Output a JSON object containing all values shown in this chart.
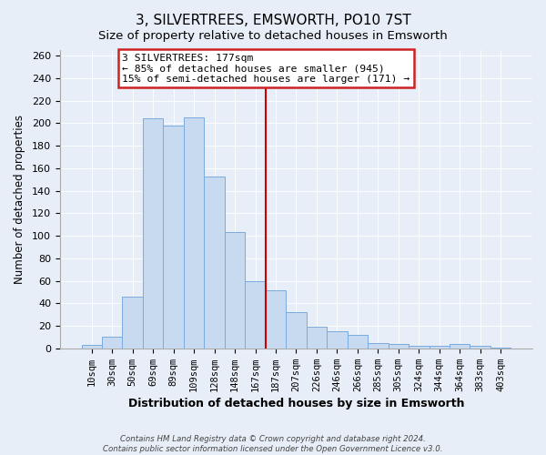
{
  "title": "3, SILVERTREES, EMSWORTH, PO10 7ST",
  "subtitle": "Size of property relative to detached houses in Emsworth",
  "xlabel": "Distribution of detached houses by size in Emsworth",
  "ylabel": "Number of detached properties",
  "bar_labels": [
    "10sqm",
    "30sqm",
    "50sqm",
    "69sqm",
    "89sqm",
    "109sqm",
    "128sqm",
    "148sqm",
    "167sqm",
    "187sqm",
    "207sqm",
    "226sqm",
    "246sqm",
    "266sqm",
    "285sqm",
    "305sqm",
    "324sqm",
    "344sqm",
    "364sqm",
    "383sqm",
    "403sqm"
  ],
  "bar_values": [
    3,
    10,
    46,
    204,
    198,
    205,
    153,
    103,
    60,
    52,
    32,
    19,
    15,
    12,
    5,
    4,
    2,
    2,
    4,
    2,
    1
  ],
  "bar_color": "#c8daf0",
  "bar_edge_color": "#7aaadd",
  "vline_x": 8.5,
  "vline_color": "#cc0000",
  "annotation_line1": "3 SILVERTREES: 177sqm",
  "annotation_line2": "← 85% of detached houses are smaller (945)",
  "annotation_line3": "15% of semi-detached houses are larger (171) →",
  "annotation_box_facecolor": "white",
  "annotation_box_edgecolor": "#cc2222",
  "footer1": "Contains HM Land Registry data © Crown copyright and database right 2024.",
  "footer2": "Contains public sector information licensed under the Open Government Licence v3.0.",
  "ylim_max": 265,
  "yticks": [
    0,
    20,
    40,
    60,
    80,
    100,
    120,
    140,
    160,
    180,
    200,
    220,
    240,
    260
  ],
  "background_color": "#e8eef8",
  "grid_color": "#ffffff",
  "title_fontsize": 11,
  "subtitle_fontsize": 9.5
}
